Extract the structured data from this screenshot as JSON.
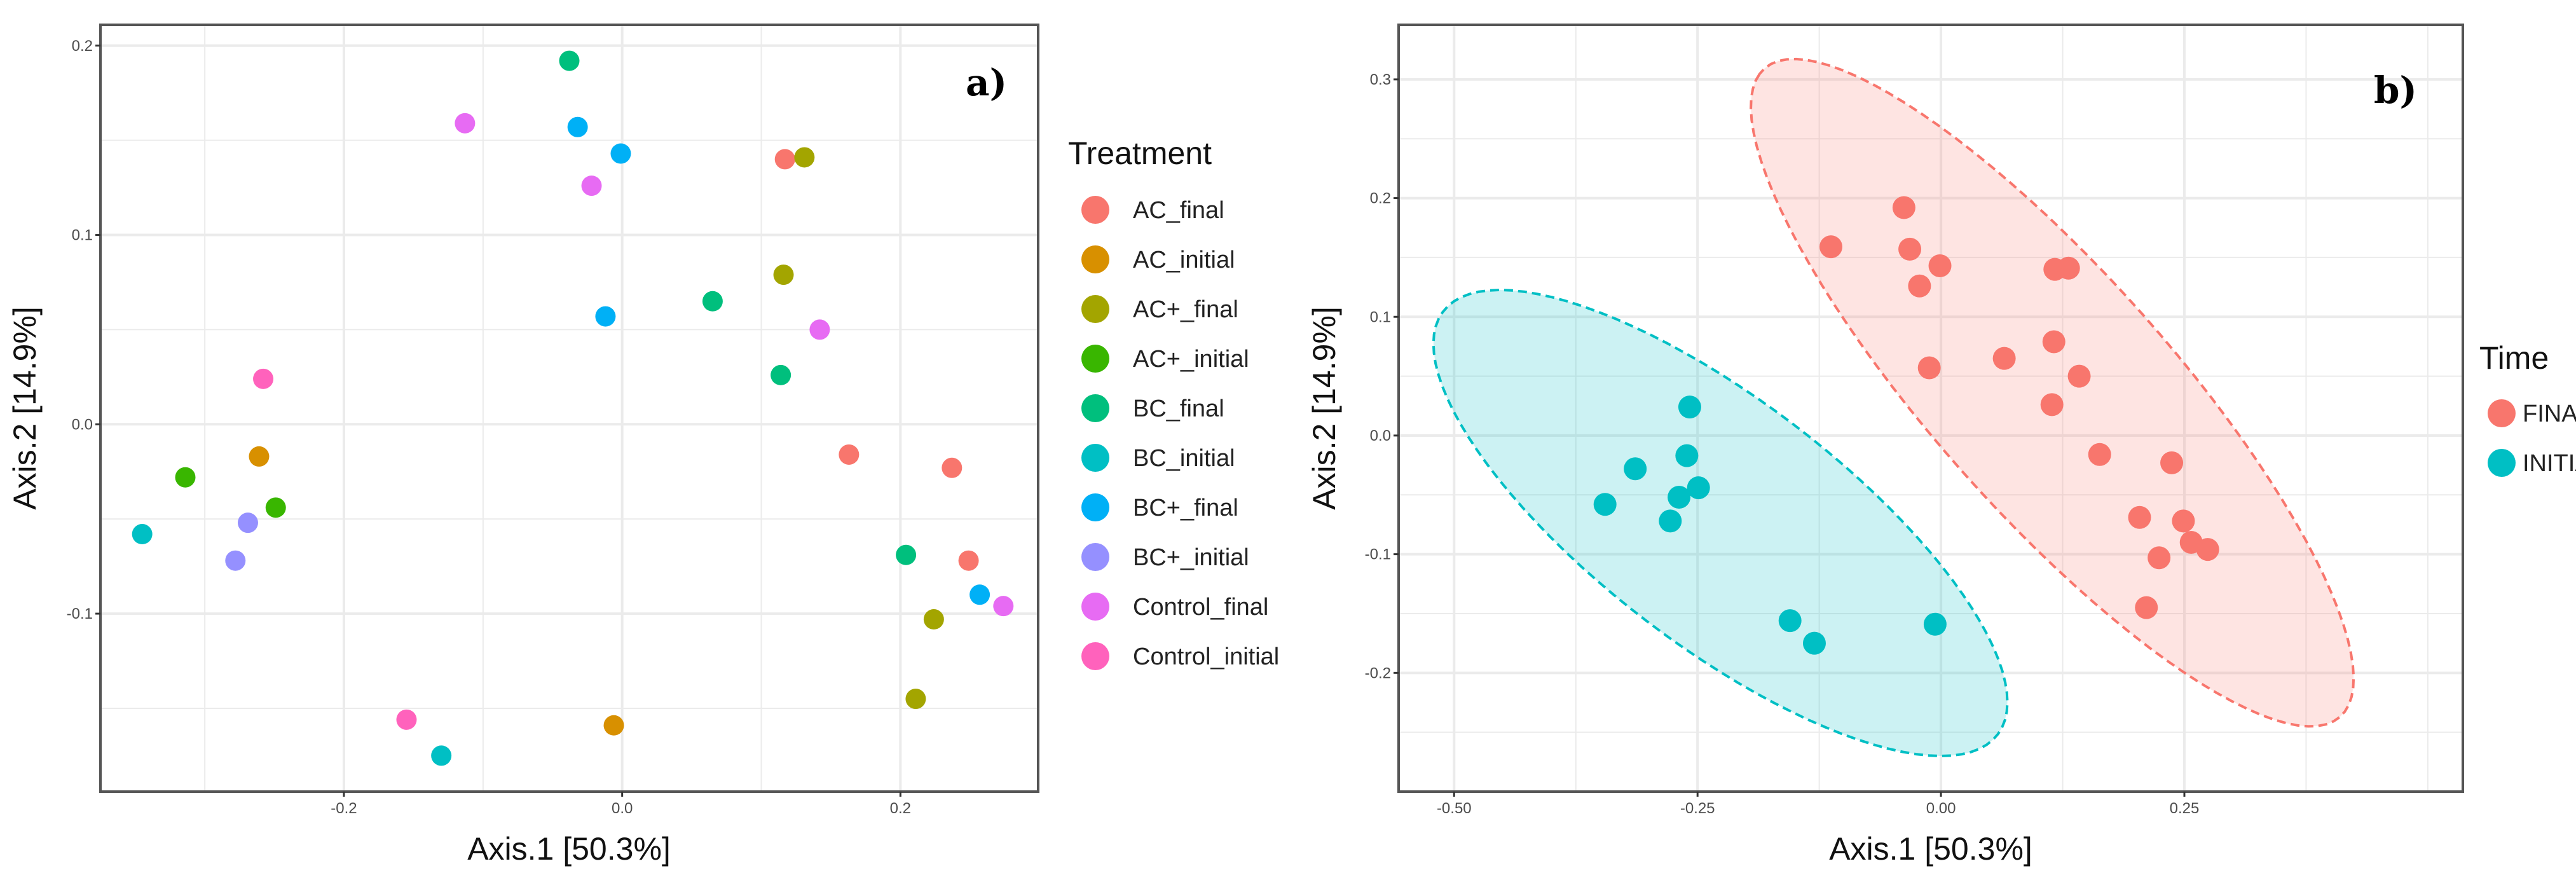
{
  "chart_data": [
    {
      "type": "scatter",
      "panel_label": "a)",
      "xlabel": "Axis.1   [50.3%]",
      "ylabel": "Axis.2   [14.9%]",
      "xlim": [
        -0.375,
        0.299
      ],
      "ylim": [
        -0.194,
        0.211
      ],
      "xticks": [
        -0.2,
        0.0,
        0.2
      ],
      "xtick_labels": [
        "-0.2",
        "0.0",
        "0.2"
      ],
      "yticks": [
        -0.1,
        0.0,
        0.1,
        0.2
      ],
      "ytick_labels": [
        "-0.1",
        "0.0",
        "0.1",
        "0.2"
      ],
      "grid": true,
      "legend_title": "Treatment",
      "legend_position": "right",
      "series": [
        {
          "name": "AC_final",
          "color": "#F8766D",
          "points": [
            [
              0.117,
              0.14
            ],
            [
              0.163,
              -0.016
            ],
            [
              0.237,
              -0.023
            ],
            [
              0.249,
              -0.072
            ]
          ]
        },
        {
          "name": "AC_initial",
          "color": "#D89000",
          "points": [
            [
              -0.261,
              -0.017
            ],
            [
              -0.006,
              -0.159
            ]
          ]
        },
        {
          "name": "AC+_final",
          "color": "#A3A500",
          "points": [
            [
              0.131,
              0.141
            ],
            [
              0.116,
              0.079
            ],
            [
              0.224,
              -0.103
            ],
            [
              0.211,
              -0.145
            ]
          ]
        },
        {
          "name": "AC+_initial",
          "color": "#39B600",
          "points": [
            [
              -0.314,
              -0.028
            ],
            [
              -0.249,
              -0.044
            ]
          ]
        },
        {
          "name": "BC_final",
          "color": "#00BF7D",
          "points": [
            [
              -0.038,
              0.192
            ],
            [
              0.065,
              0.065
            ],
            [
              0.114,
              0.026
            ],
            [
              0.204,
              -0.069
            ]
          ]
        },
        {
          "name": "BC_initial",
          "color": "#00BFC4",
          "points": [
            [
              -0.345,
              -0.058
            ],
            [
              -0.13,
              -0.175
            ]
          ]
        },
        {
          "name": "BC+_final",
          "color": "#00B0F6",
          "points": [
            [
              -0.032,
              0.157
            ],
            [
              -0.001,
              0.143
            ],
            [
              -0.012,
              0.057
            ],
            [
              0.257,
              -0.09
            ]
          ]
        },
        {
          "name": "BC+_initial",
          "color": "#9590FF",
          "points": [
            [
              -0.269,
              -0.052
            ],
            [
              -0.278,
              -0.072
            ]
          ]
        },
        {
          "name": "Control_final",
          "color": "#E76BF3",
          "points": [
            [
              -0.113,
              0.159
            ],
            [
              -0.022,
              0.126
            ],
            [
              0.142,
              0.05
            ],
            [
              0.274,
              -0.096
            ]
          ]
        },
        {
          "name": "Control_initial",
          "color": "#FF62BC",
          "points": [
            [
              -0.258,
              0.024
            ],
            [
              -0.155,
              -0.156
            ]
          ]
        }
      ]
    },
    {
      "type": "scatter",
      "panel_label": "b)",
      "xlabel": "Axis.1   [50.3%]",
      "ylabel": "Axis.2   [14.9%]",
      "xlim": [
        -0.557,
        0.536
      ],
      "ylim": [
        -0.3,
        0.346
      ],
      "xticks": [
        -0.5,
        -0.25,
        0.0,
        0.25
      ],
      "xtick_labels": [
        "-0.50",
        "-0.25",
        "0.00",
        "0.25"
      ],
      "yticks": [
        -0.2,
        -0.1,
        0.0,
        0.1,
        0.2,
        0.3
      ],
      "ytick_labels": [
        "-0.2",
        "-0.1",
        "0.0",
        "0.1",
        "0.2",
        "0.3"
      ],
      "grid": true,
      "legend_title": "Time",
      "legend_position": "right",
      "ellipse_level": 0.95,
      "series": [
        {
          "name": "FINAL",
          "color": "#F8766D",
          "points": [
            [
              0.117,
              0.14
            ],
            [
              0.163,
              -0.016
            ],
            [
              0.237,
              -0.023
            ],
            [
              0.249,
              -0.072
            ],
            [
              0.131,
              0.141
            ],
            [
              0.116,
              0.079
            ],
            [
              0.224,
              -0.103
            ],
            [
              0.211,
              -0.145
            ],
            [
              -0.038,
              0.192
            ],
            [
              0.065,
              0.065
            ],
            [
              0.114,
              0.026
            ],
            [
              0.204,
              -0.069
            ],
            [
              -0.032,
              0.157
            ],
            [
              -0.001,
              0.143
            ],
            [
              -0.012,
              0.057
            ],
            [
              0.257,
              -0.09
            ],
            [
              -0.113,
              0.159
            ],
            [
              -0.022,
              0.126
            ],
            [
              0.142,
              0.05
            ],
            [
              0.274,
              -0.096
            ]
          ]
        },
        {
          "name": "INITIAL",
          "color": "#00BFC4",
          "points": [
            [
              -0.261,
              -0.017
            ],
            [
              -0.006,
              -0.159
            ],
            [
              -0.314,
              -0.028
            ],
            [
              -0.249,
              -0.044
            ],
            [
              -0.345,
              -0.058
            ],
            [
              -0.13,
              -0.175
            ],
            [
              -0.269,
              -0.052
            ],
            [
              -0.278,
              -0.072
            ],
            [
              -0.258,
              0.024
            ],
            [
              -0.155,
              -0.156
            ]
          ]
        }
      ]
    }
  ]
}
